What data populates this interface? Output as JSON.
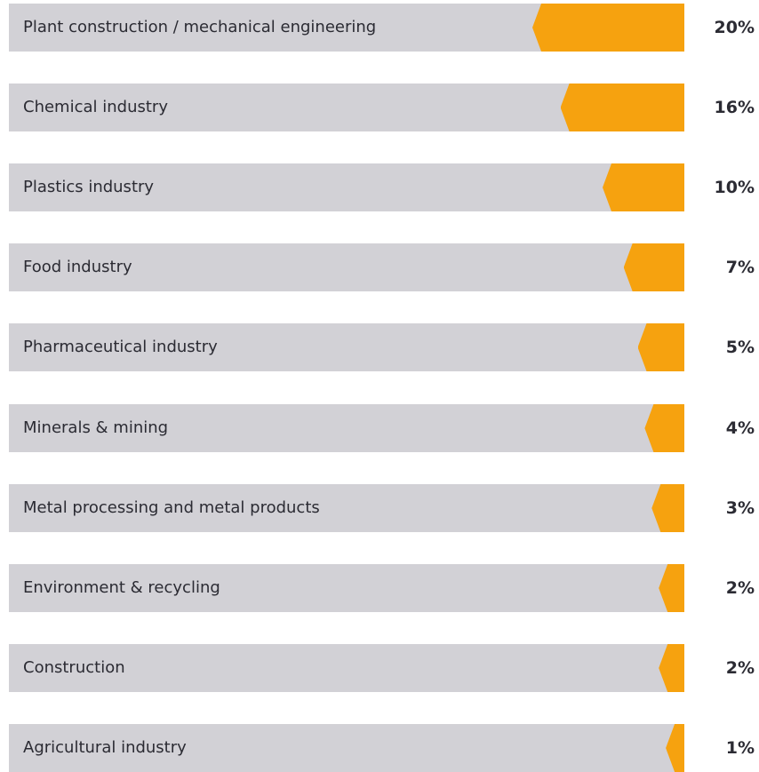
{
  "chart_data": {
    "type": "bar",
    "orientation": "horizontal",
    "categories": [
      "Plant construction / mechanical engineering",
      "Chemical industry",
      "Plastics industry",
      "Food industry",
      "Pharmaceutical industry",
      "Minerals & mining",
      "Metal processing and metal products",
      "Environment & recycling",
      "Construction",
      "Agricultural industry"
    ],
    "values": [
      20,
      16,
      10,
      7,
      5,
      4,
      3,
      2,
      2,
      1
    ],
    "value_labels": [
      "20%",
      "16%",
      "10%",
      "7%",
      "5%",
      "4%",
      "3%",
      "2%",
      "2%",
      "1%"
    ],
    "unit": "%",
    "bar_background_color": "#d2d1d6",
    "bar_fill_color": "#f6a20f",
    "text_color": "#2b2b33"
  }
}
